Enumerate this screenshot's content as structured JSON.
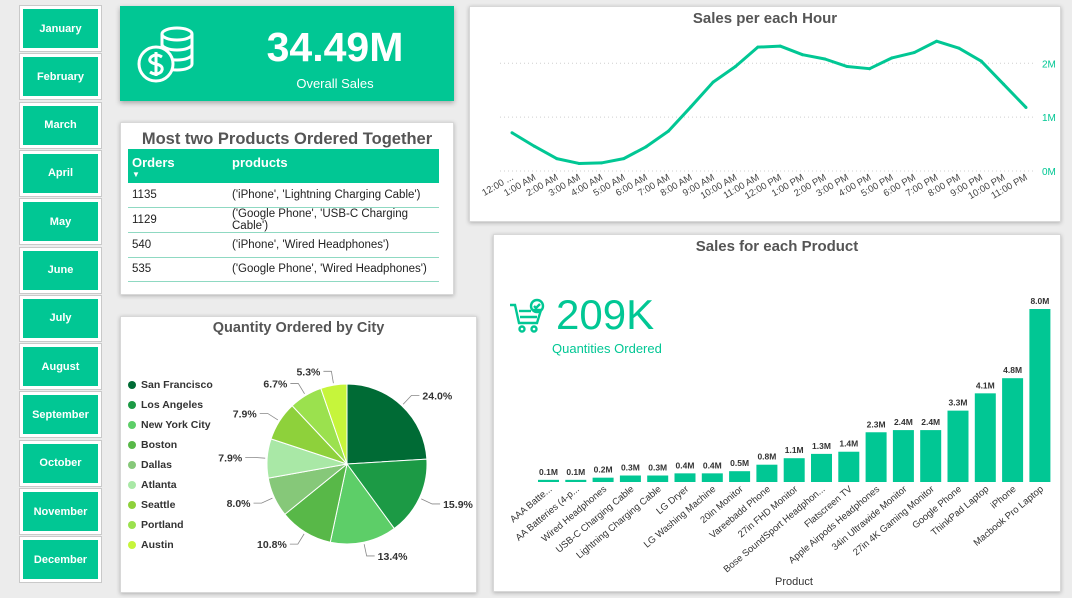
{
  "months": [
    "January",
    "February",
    "March",
    "April",
    "May",
    "June",
    "July",
    "August",
    "September",
    "October",
    "November",
    "December"
  ],
  "kpi": {
    "value": "34.49M",
    "label": "Overall Sales",
    "icon": "coins-dollar-icon"
  },
  "products_together": {
    "title": "Most two Products Ordered Together",
    "columns": [
      "Orders",
      "products"
    ],
    "rows": [
      {
        "orders": "1135",
        "products": "('iPhone', 'Lightning Charging Cable')"
      },
      {
        "orders": "1129",
        "products": "('Google Phone', 'USB-C Charging Cable')"
      },
      {
        "orders": "540",
        "products": "('iPhone', 'Wired Headphones')"
      },
      {
        "orders": "535",
        "products": "('Google Phone', 'Wired Headphones')"
      }
    ]
  },
  "colors": {
    "accent": "#01c794"
  },
  "chart_data": [
    {
      "type": "line",
      "title": "Sales per each Hour",
      "x": [
        "12:00 ...",
        "1:00 AM",
        "2:00 AM",
        "3:00 AM",
        "4:00 AM",
        "5:00 AM",
        "6:00 AM",
        "7:00 AM",
        "8:00 AM",
        "9:00 AM",
        "10:00 AM",
        "11:00 AM",
        "12:00 PM",
        "1:00 PM",
        "2:00 PM",
        "3:00 PM",
        "4:00 PM",
        "5:00 PM",
        "6:00 PM",
        "7:00 PM",
        "8:00 PM",
        "9:00 PM",
        "10:00 PM",
        "11:00 PM"
      ],
      "series": [
        {
          "values": [
            0.71,
            0.46,
            0.23,
            0.14,
            0.15,
            0.23,
            0.45,
            0.74,
            1.19,
            1.65,
            1.94,
            2.3,
            2.32,
            2.16,
            2.08,
            1.94,
            1.9,
            2.1,
            2.2,
            2.41,
            2.28,
            2.04,
            1.61,
            1.18
          ]
        }
      ],
      "yticks": [
        "0M",
        "1M",
        "2M"
      ],
      "ylim": [
        0,
        2.6
      ],
      "color": "#01c794"
    },
    {
      "type": "pie",
      "title": "Quantity Ordered by City",
      "labels": [
        "San Francisco",
        "Los Angeles",
        "New York City",
        "Boston",
        "Dallas",
        "Atlanta",
        "Seattle",
        "Portland",
        "Austin"
      ],
      "values": [
        24.0,
        15.9,
        13.4,
        10.8,
        8.0,
        7.9,
        7.9,
        6.7,
        5.3
      ],
      "value_labels": [
        "24.0%",
        "15.9%",
        "13.4%",
        "10.8%",
        "8.0%",
        "7.9%",
        "7.9%",
        "6.7%",
        "5.3%"
      ],
      "colors": [
        "#006b35",
        "#1c9a45",
        "#5dce68",
        "#58b848",
        "#86c879",
        "#a9e8a6",
        "#8ed13b",
        "#9be14e",
        "#c6f53b"
      ],
      "legend": "left"
    },
    {
      "type": "bar",
      "title": "Sales for each Product",
      "xlabel": "Product",
      "kpi_value": "209K",
      "kpi_label": "Quantities Ordered",
      "kpi_icon": "shopping-cart-check-icon",
      "categories": [
        "AAA Batte...",
        "AA Batteries (4-p...",
        "Wired Headphones",
        "USB-C Charging Cable",
        "Lightning Charging Cable",
        "LG Dryer",
        "LG Washing Machine",
        "20in Monitor",
        "Vareebadd Phone",
        "27in FHD Monitor",
        "Bose SoundSport Headphon...",
        "Flatscreen TV",
        "Apple Airpods Headphones",
        "34in Ultrawide Monitor",
        "27in 4K Gaming Monitor",
        "Google Phone",
        "ThinkPad Laptop",
        "iPhone",
        "Macbook Pro Laptop"
      ],
      "values": [
        0.1,
        0.1,
        0.2,
        0.3,
        0.3,
        0.4,
        0.4,
        0.5,
        0.8,
        1.1,
        1.3,
        1.4,
        2.3,
        2.4,
        2.4,
        3.3,
        4.1,
        4.8,
        8.0
      ],
      "value_labels": [
        "0.1M",
        "0.1M",
        "0.2M",
        "0.3M",
        "0.3M",
        "0.4M",
        "0.4M",
        "0.5M",
        "0.8M",
        "1.1M",
        "1.3M",
        "1.4M",
        "2.3M",
        "2.4M",
        "2.4M",
        "3.3M",
        "4.1M",
        "4.8M",
        "8.0M"
      ],
      "ylim": [
        0,
        8.0
      ],
      "color": "#01c794"
    }
  ]
}
